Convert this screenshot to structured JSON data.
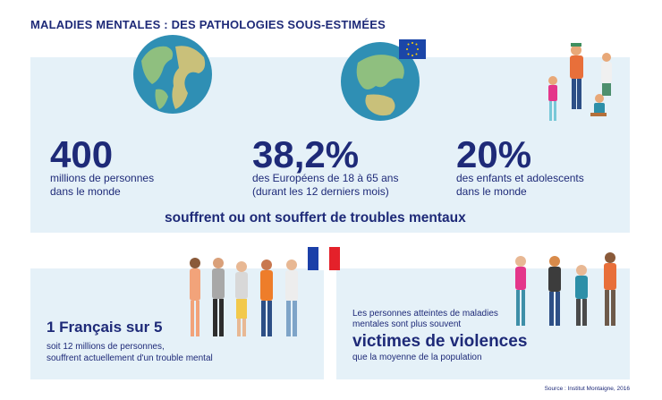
{
  "title": "MALADIES MENTALES : DES PATHOLOGIES SOUS-ESTIMÉES",
  "stats": [
    {
      "value": "400",
      "line1": "millions de personnes",
      "line2": "dans le monde"
    },
    {
      "value": "38,2%",
      "line1": "des Européens de 18 à 65 ans",
      "line2": "(durant les 12 derniers mois)"
    },
    {
      "value": "20%",
      "line1": "des enfants et adolescents",
      "line2": "dans le monde"
    }
  ],
  "summary": "souffrent ou ont souffert de troubles mentaux",
  "france": {
    "headline": "1 Français sur 5",
    "line1": "soit 12 millions de personnes,",
    "line2": "souffrent actuellement d'un trouble mental"
  },
  "violence": {
    "line1": "Les personnes atteintes de maladies",
    "line2": "mentales sont plus souvent",
    "headline": "victimes de violences",
    "line3": "que la moyenne de la population"
  },
  "source": "Source : Institut Montaigne, 2016",
  "colors": {
    "navy": "#1e2a78",
    "panel": "#e5f1f8",
    "ocean": "#2f8fb4",
    "land": "#8fbf7f",
    "eu_blue": "#1b46a8",
    "fr_red": "#e4212a"
  }
}
